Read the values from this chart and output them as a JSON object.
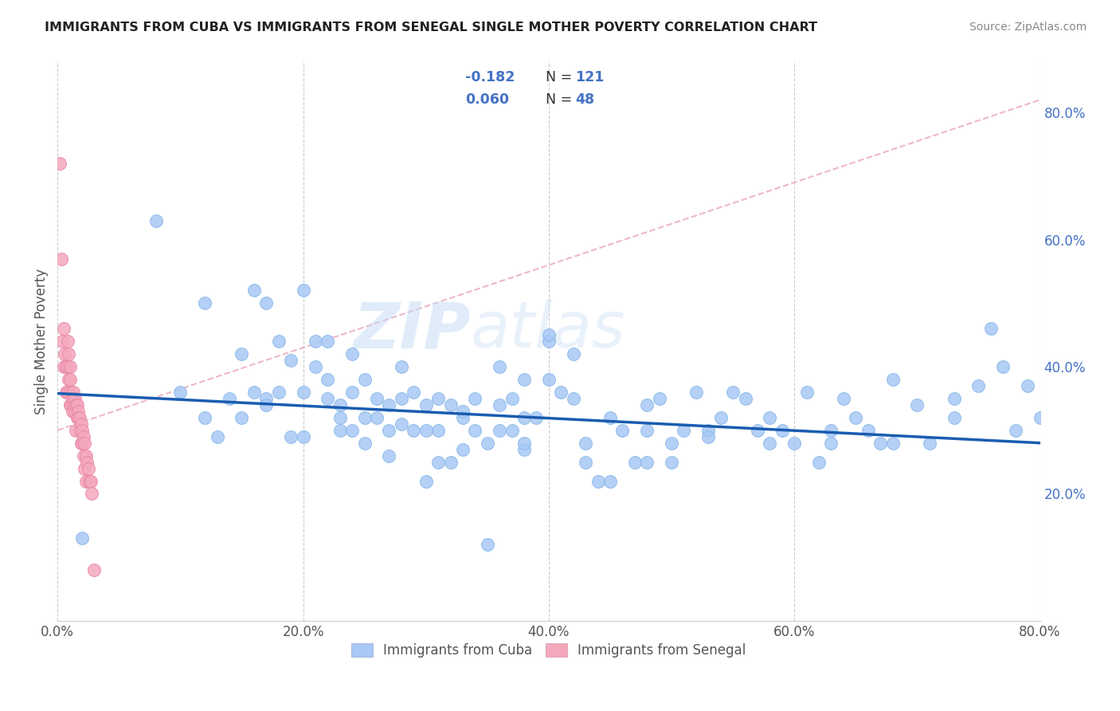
{
  "title": "IMMIGRANTS FROM CUBA VS IMMIGRANTS FROM SENEGAL SINGLE MOTHER POVERTY CORRELATION CHART",
  "source": "Source: ZipAtlas.com",
  "ylabel": "Single Mother Poverty",
  "xlim": [
    0.0,
    0.8
  ],
  "ylim": [
    0.0,
    0.88
  ],
  "ytick_labels": [
    "20.0%",
    "40.0%",
    "60.0%",
    "80.0%"
  ],
  "ytick_values": [
    0.2,
    0.4,
    0.6,
    0.8
  ],
  "xtick_labels": [
    "0.0%",
    "20.0%",
    "40.0%",
    "60.0%",
    "80.0%"
  ],
  "xtick_values": [
    0.0,
    0.2,
    0.4,
    0.6,
    0.8
  ],
  "cuba_color": "#a8c8f5",
  "senegal_color": "#f5a8bc",
  "cuba_trend_color": "#1a5cb0",
  "senegal_trend_color": "#e8a0b8",
  "watermark_zip": "ZIP",
  "watermark_atlas": "atlas",
  "cuba_scatter_x": [
    0.02,
    0.08,
    0.12,
    0.14,
    0.15,
    0.16,
    0.16,
    0.17,
    0.17,
    0.18,
    0.18,
    0.19,
    0.19,
    0.2,
    0.2,
    0.21,
    0.21,
    0.22,
    0.22,
    0.22,
    0.23,
    0.23,
    0.24,
    0.24,
    0.24,
    0.25,
    0.25,
    0.25,
    0.26,
    0.26,
    0.27,
    0.27,
    0.27,
    0.28,
    0.28,
    0.29,
    0.29,
    0.3,
    0.3,
    0.3,
    0.31,
    0.31,
    0.31,
    0.32,
    0.32,
    0.33,
    0.33,
    0.34,
    0.34,
    0.35,
    0.35,
    0.36,
    0.36,
    0.36,
    0.37,
    0.37,
    0.38,
    0.38,
    0.38,
    0.39,
    0.4,
    0.4,
    0.4,
    0.41,
    0.42,
    0.42,
    0.43,
    0.44,
    0.45,
    0.45,
    0.46,
    0.47,
    0.48,
    0.48,
    0.49,
    0.5,
    0.5,
    0.51,
    0.52,
    0.53,
    0.54,
    0.55,
    0.56,
    0.57,
    0.58,
    0.59,
    0.6,
    0.61,
    0.62,
    0.63,
    0.64,
    0.65,
    0.66,
    0.67,
    0.68,
    0.7,
    0.71,
    0.73,
    0.75,
    0.76,
    0.77,
    0.78,
    0.79,
    0.8,
    0.13,
    0.17,
    0.2,
    0.23,
    0.28,
    0.33,
    0.38,
    0.43,
    0.48,
    0.53,
    0.58,
    0.63,
    0.68,
    0.73,
    0.1,
    0.12,
    0.15
  ],
  "cuba_scatter_y": [
    0.13,
    0.63,
    0.5,
    0.35,
    0.42,
    0.36,
    0.52,
    0.35,
    0.5,
    0.44,
    0.36,
    0.41,
    0.29,
    0.36,
    0.52,
    0.44,
    0.4,
    0.38,
    0.44,
    0.35,
    0.34,
    0.3,
    0.3,
    0.36,
    0.42,
    0.28,
    0.32,
    0.38,
    0.35,
    0.32,
    0.34,
    0.3,
    0.26,
    0.4,
    0.35,
    0.3,
    0.36,
    0.3,
    0.34,
    0.22,
    0.3,
    0.35,
    0.25,
    0.25,
    0.34,
    0.32,
    0.27,
    0.35,
    0.3,
    0.28,
    0.12,
    0.3,
    0.34,
    0.4,
    0.35,
    0.3,
    0.32,
    0.38,
    0.27,
    0.32,
    0.44,
    0.45,
    0.38,
    0.36,
    0.42,
    0.35,
    0.28,
    0.22,
    0.32,
    0.22,
    0.3,
    0.25,
    0.3,
    0.34,
    0.35,
    0.25,
    0.28,
    0.3,
    0.36,
    0.3,
    0.32,
    0.36,
    0.35,
    0.3,
    0.28,
    0.3,
    0.28,
    0.36,
    0.25,
    0.3,
    0.35,
    0.32,
    0.3,
    0.28,
    0.38,
    0.34,
    0.28,
    0.35,
    0.37,
    0.46,
    0.4,
    0.3,
    0.37,
    0.32,
    0.29,
    0.34,
    0.29,
    0.32,
    0.31,
    0.33,
    0.28,
    0.25,
    0.25,
    0.29,
    0.32,
    0.28,
    0.28,
    0.32,
    0.36,
    0.32,
    0.32
  ],
  "senegal_scatter_x": [
    0.002,
    0.003,
    0.004,
    0.005,
    0.005,
    0.006,
    0.007,
    0.007,
    0.008,
    0.008,
    0.008,
    0.009,
    0.009,
    0.01,
    0.01,
    0.01,
    0.011,
    0.011,
    0.012,
    0.012,
    0.013,
    0.013,
    0.014,
    0.014,
    0.015,
    0.015,
    0.016,
    0.016,
    0.017,
    0.017,
    0.018,
    0.018,
    0.019,
    0.019,
    0.02,
    0.02,
    0.021,
    0.021,
    0.022,
    0.022,
    0.023,
    0.023,
    0.024,
    0.025,
    0.026,
    0.027,
    0.028,
    0.03
  ],
  "senegal_scatter_y": [
    0.72,
    0.57,
    0.44,
    0.46,
    0.4,
    0.42,
    0.4,
    0.36,
    0.44,
    0.4,
    0.36,
    0.42,
    0.38,
    0.4,
    0.38,
    0.34,
    0.36,
    0.34,
    0.35,
    0.33,
    0.36,
    0.34,
    0.35,
    0.33,
    0.34,
    0.3,
    0.34,
    0.32,
    0.33,
    0.32,
    0.32,
    0.3,
    0.31,
    0.28,
    0.3,
    0.28,
    0.29,
    0.26,
    0.28,
    0.24,
    0.26,
    0.22,
    0.25,
    0.24,
    0.22,
    0.22,
    0.2,
    0.08
  ],
  "cuba_trend_x0": 0.0,
  "cuba_trend_y0": 0.358,
  "cuba_trend_x1": 0.8,
  "cuba_trend_y1": 0.28,
  "senegal_trend_x0": 0.0,
  "senegal_trend_y0": 0.3,
  "senegal_trend_x1": 0.8,
  "senegal_trend_y1": 0.82
}
